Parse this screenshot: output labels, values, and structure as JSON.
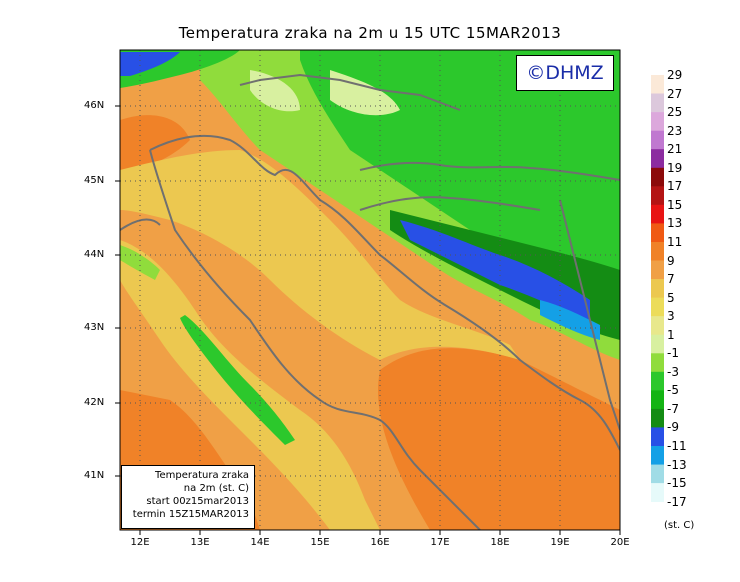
{
  "title": "Temperatura zraka na 2m u 15 UTC 15MAR2013",
  "credit": "©DHMZ",
  "info": {
    "line1": "Temperatura zraka",
    "line2": "na 2m (st. C)",
    "line3": "start 00z15mar2013",
    "line4": "termin 15Z15MAR2013"
  },
  "lat_labels": [
    "46N",
    "45N",
    "44N",
    "43N",
    "42N",
    "41N"
  ],
  "lon_labels": [
    "12E",
    "13E",
    "14E",
    "15E",
    "16E",
    "17E",
    "18E",
    "19E",
    "20E"
  ],
  "legend": {
    "labels": [
      "29",
      "27",
      "25",
      "23",
      "21",
      "19",
      "17",
      "15",
      "13",
      "11",
      "9",
      "7",
      "5",
      "3",
      "1",
      "-1",
      "-3",
      "-5",
      "-7",
      "-9",
      "-11",
      "-13",
      "-15",
      "-17"
    ],
    "colors": [
      "#fbe9d8",
      "#dcc8dc",
      "#dca8dc",
      "#c078d0",
      "#8c2ca0",
      "#8c0a0a",
      "#b41414",
      "#e81414",
      "#f05a14",
      "#f08228",
      "#f0a046",
      "#ecc850",
      "#ecdc5a",
      "#e8e88c",
      "#d8f0a0",
      "#90dc3c",
      "#2cc82c",
      "#14b414",
      "#148c14",
      "#2850e6",
      "#14a0e6",
      "#a0dce6",
      "#e6fafa"
    ],
    "unit": "(st. C)"
  }
}
